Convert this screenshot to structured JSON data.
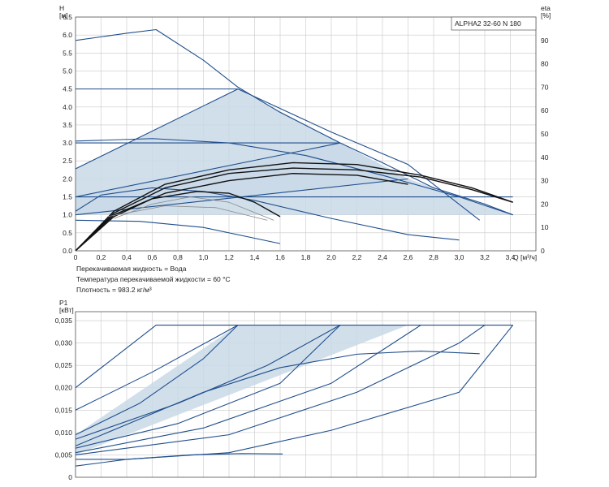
{
  "notes": {
    "fluid": "Перекачиваемая жидкость = Вода",
    "temperature": "Температура перекачиваемой жидкости = 60 °C",
    "density": "Плотность = 983.2 кг/м³"
  },
  "colors": {
    "curve": "#1f4e8c",
    "fill": "#c9d9e8",
    "grid": "#c8c8c8",
    "frame": "#555555",
    "black": "#111111",
    "gray": "#888888"
  },
  "chart_data": [
    {
      "type": "line",
      "title": "ALPHA2 32-60 N 180",
      "ylabel": "H\n[м]",
      "xlabel": "Q [м³/ч]",
      "y2label": "eta\n[%]",
      "xlim": [
        0,
        3.6
      ],
      "ylim": [
        0,
        6.5
      ],
      "y2lim": [
        0,
        100
      ],
      "x_ticks": [
        "0",
        "0,2",
        "0,4",
        "0,6",
        "0,8",
        "1,0",
        "1,2",
        "1,4",
        "1,6",
        "1,8",
        "2,0",
        "2,2",
        "2,4",
        "2,6",
        "2,8",
        "3,0",
        "3,2",
        "3,4"
      ],
      "y_ticks": [
        "0.0",
        "0.5",
        "1.0",
        "1.5",
        "2.0",
        "2.5",
        "3.0",
        "3.5",
        "4.0",
        "4.5",
        "5.0",
        "5.5",
        "6.0",
        "6.5"
      ],
      "y2_ticks": [
        "0",
        "10",
        "20",
        "30",
        "40",
        "50",
        "60",
        "70",
        "80",
        "90"
      ],
      "grid": true,
      "shaded_regions": [
        {
          "name": "proportional pressure area",
          "points": [
            [
              0,
              2.28
            ],
            [
              1.27,
              4.5
            ],
            [
              2.07,
              3.0
            ],
            [
              2.6,
              2.0
            ],
            [
              0,
              1.0
            ]
          ]
        },
        {
          "name": "constant pressure area",
          "points": [
            [
              0,
              1.5
            ],
            [
              2.07,
              3.0
            ],
            [
              2.6,
              2.0
            ],
            [
              3.42,
              1.0
            ],
            [
              0,
              1.0
            ]
          ]
        }
      ],
      "series": [
        {
          "style": "blue",
          "points": [
            [
              0,
              5.85
            ],
            [
              0.2,
              5.95
            ],
            [
              0.4,
              6.05
            ],
            [
              0.63,
              6.15
            ],
            [
              1.0,
              5.3
            ],
            [
              1.27,
              4.55
            ],
            [
              1.6,
              3.85
            ],
            [
              2.07,
              3.0
            ],
            [
              2.4,
              2.45
            ],
            [
              2.8,
              1.75
            ],
            [
              3.2,
              1.3
            ],
            [
              3.42,
              1.0
            ]
          ]
        },
        {
          "style": "blue",
          "points": [
            [
              0,
              4.5
            ],
            [
              1.27,
              4.5
            ]
          ]
        },
        {
          "style": "blue",
          "points": [
            [
              0,
              3.0
            ],
            [
              2.07,
              3.0
            ]
          ]
        },
        {
          "style": "blue",
          "points": [
            [
              0,
              1.5
            ],
            [
              3.42,
              1.5
            ]
          ]
        },
        {
          "style": "blue",
          "points": [
            [
              0,
              2.28
            ],
            [
              1.27,
              4.5
            ]
          ]
        },
        {
          "style": "blue",
          "points": [
            [
              0,
              1.5
            ],
            [
              2.07,
              3.0
            ]
          ]
        },
        {
          "style": "blue",
          "points": [
            [
              0,
              1.0
            ],
            [
              2.6,
              2.0
            ]
          ]
        },
        {
          "style": "blue",
          "points": [
            [
              1.27,
              4.5
            ],
            [
              2.0,
              3.3
            ],
            [
              2.6,
              2.4
            ],
            [
              3.16,
              0.85
            ]
          ]
        },
        {
          "style": "blue",
          "points": [
            [
              0,
              3.05
            ],
            [
              0.6,
              3.12
            ],
            [
              1.2,
              3.0
            ],
            [
              1.8,
              2.65
            ],
            [
              2.4,
              2.1
            ],
            [
              3.0,
              1.5
            ],
            [
              3.42,
              1.0
            ]
          ]
        },
        {
          "style": "blue",
          "points": [
            [
              0,
              0.85
            ],
            [
              0.5,
              0.82
            ],
            [
              1.0,
              0.65
            ],
            [
              1.6,
              0.2
            ]
          ]
        },
        {
          "style": "blue",
          "points": [
            [
              0,
              1.1
            ],
            [
              0.2,
              1.55
            ],
            [
              0.6,
              1.75
            ],
            [
              1.0,
              1.65
            ],
            [
              1.4,
              1.4
            ],
            [
              2.0,
              0.9
            ],
            [
              2.6,
              0.45
            ],
            [
              3.0,
              0.3
            ]
          ]
        },
        {
          "style": "black",
          "points": [
            [
              0,
              0
            ],
            [
              0.3,
              1.1
            ],
            [
              0.7,
              1.85
            ],
            [
              1.2,
              2.25
            ],
            [
              1.7,
              2.45
            ],
            [
              2.2,
              2.4
            ],
            [
              2.7,
              2.1
            ],
            [
              3.1,
              1.75
            ],
            [
              3.42,
              1.35
            ]
          ]
        },
        {
          "style": "black",
          "points": [
            [
              0,
              0
            ],
            [
              0.3,
              1.05
            ],
            [
              0.7,
              1.75
            ],
            [
              1.2,
              2.15
            ],
            [
              1.7,
              2.3
            ],
            [
              2.2,
              2.25
            ],
            [
              2.7,
              2.05
            ],
            [
              3.1,
              1.7
            ],
            [
              3.42,
              1.35
            ]
          ]
        },
        {
          "style": "black",
          "points": [
            [
              0,
              0
            ],
            [
              0.3,
              1.0
            ],
            [
              0.7,
              1.6
            ],
            [
              1.2,
              1.95
            ],
            [
              1.7,
              2.15
            ],
            [
              2.2,
              2.1
            ],
            [
              2.6,
              1.85
            ]
          ]
        },
        {
          "style": "black",
          "points": [
            [
              0,
              0
            ],
            [
              0.3,
              0.95
            ],
            [
              0.6,
              1.45
            ],
            [
              0.95,
              1.65
            ],
            [
              1.2,
              1.6
            ],
            [
              1.4,
              1.35
            ],
            [
              1.6,
              0.95
            ]
          ]
        },
        {
          "style": "gray",
          "points": [
            [
              0.3,
              0.9
            ],
            [
              0.6,
              1.3
            ],
            [
              0.9,
              1.5
            ],
            [
              1.2,
              1.35
            ],
            [
              1.55,
              0.85
            ]
          ]
        },
        {
          "style": "gray",
          "points": [
            [
              0.25,
              0.95
            ],
            [
              0.7,
              1.25
            ],
            [
              1.1,
              1.2
            ],
            [
              1.5,
              0.85
            ]
          ]
        }
      ]
    },
    {
      "type": "line",
      "ylabel": "P1\n[кВт]",
      "xlim": [
        0,
        3.6
      ],
      "ylim": [
        0,
        0.037
      ],
      "y_ticks": [
        "0",
        "0,005",
        "0,010",
        "0,015",
        "0,020",
        "0,025",
        "0,030",
        "0,035"
      ],
      "grid": true,
      "shaded_regions": [
        {
          "name": "power area",
          "points": [
            [
              0,
              0.0095
            ],
            [
              1.27,
              0.034
            ],
            [
              2.6,
              0.034
            ],
            [
              0,
              0.005
            ]
          ]
        }
      ],
      "series": [
        {
          "style": "blue",
          "points": [
            [
              0,
              0.02
            ],
            [
              0.63,
              0.034
            ],
            [
              3.42,
              0.034
            ]
          ]
        },
        {
          "style": "blue",
          "points": [
            [
              0,
              0.015
            ],
            [
              0.6,
              0.0235
            ],
            [
              1.27,
              0.034
            ]
          ]
        },
        {
          "style": "blue",
          "points": [
            [
              0,
              0.0095
            ],
            [
              0.5,
              0.0165
            ],
            [
              1.0,
              0.0265
            ],
            [
              1.27,
              0.034
            ]
          ]
        },
        {
          "style": "blue",
          "points": [
            [
              0,
              0.0085
            ],
            [
              0.8,
              0.0165
            ],
            [
              1.5,
              0.025
            ],
            [
              2.07,
              0.034
            ]
          ]
        },
        {
          "style": "blue",
          "points": [
            [
              0,
              0.0065
            ],
            [
              0.8,
              0.012
            ],
            [
              1.6,
              0.021
            ],
            [
              2.07,
              0.034
            ]
          ]
        },
        {
          "style": "blue",
          "points": [
            [
              0,
              0.0055
            ],
            [
              1.0,
              0.011
            ],
            [
              2.0,
              0.021
            ],
            [
              2.7,
              0.034
            ]
          ]
        },
        {
          "style": "blue",
          "points": [
            [
              0,
              0.005
            ],
            [
              1.2,
              0.0095
            ],
            [
              2.2,
              0.019
            ],
            [
              3.0,
              0.03
            ],
            [
              3.2,
              0.034
            ]
          ]
        },
        {
          "style": "blue",
          "points": [
            [
              0,
              0.004
            ],
            [
              0.4,
              0.004
            ],
            [
              1.2,
              0.0055
            ],
            [
              2.0,
              0.0105
            ],
            [
              3.0,
              0.019
            ],
            [
              3.42,
              0.034
            ]
          ]
        },
        {
          "style": "blue",
          "points": [
            [
              0,
              0.007
            ],
            [
              0.5,
              0.013
            ],
            [
              1.0,
              0.019
            ],
            [
              1.6,
              0.0245
            ],
            [
              2.2,
              0.0275
            ],
            [
              2.7,
              0.0282
            ],
            [
              3.16,
              0.0276
            ]
          ]
        },
        {
          "style": "blue",
          "points": [
            [
              0,
              0.0025
            ],
            [
              0.4,
              0.004
            ],
            [
              0.9,
              0.005
            ],
            [
              1.3,
              0.0053
            ],
            [
              1.62,
              0.0052
            ]
          ]
        }
      ]
    }
  ]
}
